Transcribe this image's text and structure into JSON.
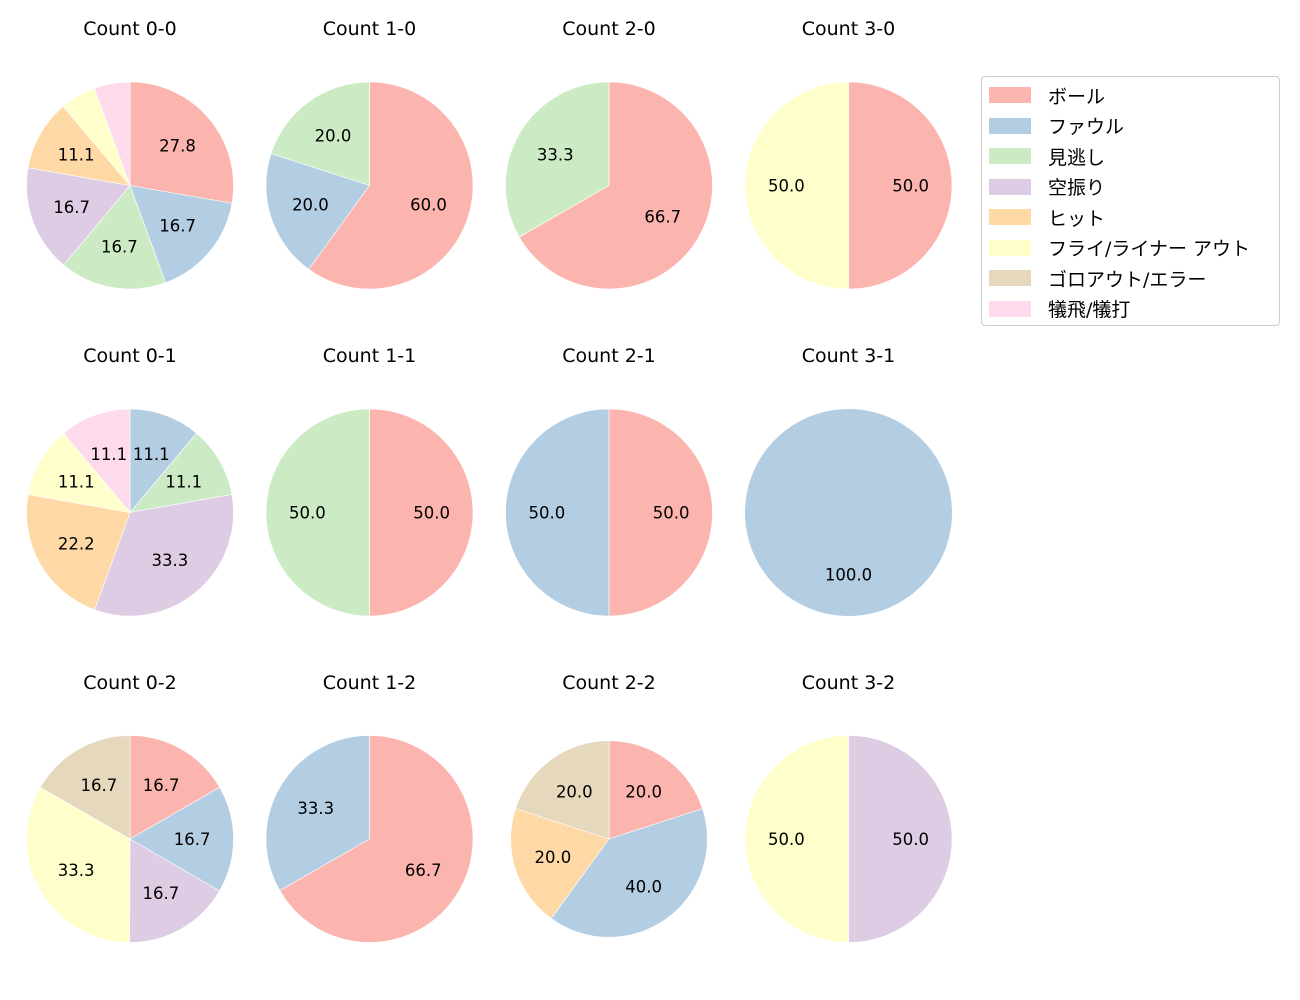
{
  "chart_data": {
    "type": "pie",
    "layout": {
      "rows": 3,
      "cols": 4,
      "start_angle": 90,
      "direction": "clockwise",
      "label_format": "%.1f"
    },
    "legend": {
      "position": "upper right",
      "entries": [
        {
          "label": "ボール",
          "color": "#fbb4ae"
        },
        {
          "label": "ファウル",
          "color": "#b3cde3"
        },
        {
          "label": "見逃し",
          "color": "#ccebc5"
        },
        {
          "label": "空振り",
          "color": "#decbe4"
        },
        {
          "label": "ヒット",
          "color": "#fed9a6"
        },
        {
          "label": "フライ/ライナー アウト",
          "color": "#ffffcc"
        },
        {
          "label": "ゴロアウト/エラー",
          "color": "#e5d8bd"
        },
        {
          "label": "犠飛/犠打",
          "color": "#fddaec"
        }
      ]
    },
    "pies": [
      {
        "title": "Count 0-0",
        "row": 0,
        "col": 0,
        "slices": [
          {
            "category": "ボール",
            "value": 27.8,
            "label": "27.8"
          },
          {
            "category": "ファウル",
            "value": 16.7,
            "label": "16.7"
          },
          {
            "category": "見逃し",
            "value": 16.7,
            "label": "16.7"
          },
          {
            "category": "空振り",
            "value": 16.7,
            "label": "16.7"
          },
          {
            "category": "ヒット",
            "value": 11.1,
            "label": "11.1"
          },
          {
            "category": "フライ/ライナー アウト",
            "value": 5.6,
            "label": ""
          },
          {
            "category": "犠飛/犠打",
            "value": 5.6,
            "label": ""
          }
        ]
      },
      {
        "title": "Count 1-0",
        "row": 0,
        "col": 1,
        "slices": [
          {
            "category": "ボール",
            "value": 60.0,
            "label": "60.0"
          },
          {
            "category": "ファウル",
            "value": 20.0,
            "label": "20.0"
          },
          {
            "category": "見逃し",
            "value": 20.0,
            "label": "20.0"
          }
        ]
      },
      {
        "title": "Count 2-0",
        "row": 0,
        "col": 2,
        "slices": [
          {
            "category": "ボール",
            "value": 66.7,
            "label": "66.7"
          },
          {
            "category": "見逃し",
            "value": 33.3,
            "label": "33.3"
          }
        ]
      },
      {
        "title": "Count 3-0",
        "row": 0,
        "col": 3,
        "slices": [
          {
            "category": "ボール",
            "value": 50.0,
            "label": "50.0"
          },
          {
            "category": "フライ/ライナー アウト",
            "value": 50.0,
            "label": "50.0"
          }
        ]
      },
      {
        "title": "Count 0-1",
        "row": 1,
        "col": 0,
        "slices": [
          {
            "category": "ファウル",
            "value": 11.1,
            "label": "11.1"
          },
          {
            "category": "見逃し",
            "value": 11.1,
            "label": "11.1"
          },
          {
            "category": "空振り",
            "value": 33.3,
            "label": "33.3"
          },
          {
            "category": "ヒット",
            "value": 22.2,
            "label": "22.2"
          },
          {
            "category": "フライ/ライナー アウト",
            "value": 11.1,
            "label": "11.1"
          },
          {
            "category": "犠飛/犠打",
            "value": 11.1,
            "label": "11.1"
          }
        ]
      },
      {
        "title": "Count 1-1",
        "row": 1,
        "col": 1,
        "slices": [
          {
            "category": "ボール",
            "value": 50.0,
            "label": "50.0"
          },
          {
            "category": "見逃し",
            "value": 50.0,
            "label": "50.0"
          }
        ]
      },
      {
        "title": "Count 2-1",
        "row": 1,
        "col": 2,
        "slices": [
          {
            "category": "ボール",
            "value": 50.0,
            "label": "50.0"
          },
          {
            "category": "ファウル",
            "value": 50.0,
            "label": "50.0"
          }
        ]
      },
      {
        "title": "Count 3-1",
        "row": 1,
        "col": 3,
        "slices": [
          {
            "category": "ファウル",
            "value": 100.0,
            "label": "100.0"
          }
        ]
      },
      {
        "title": "Count 0-2",
        "row": 2,
        "col": 0,
        "slices": [
          {
            "category": "ボール",
            "value": 16.7,
            "label": "16.7"
          },
          {
            "category": "ファウル",
            "value": 16.7,
            "label": "16.7"
          },
          {
            "category": "空振り",
            "value": 16.7,
            "label": "16.7"
          },
          {
            "category": "フライ/ライナー アウト",
            "value": 33.3,
            "label": "33.3"
          },
          {
            "category": "ゴロアウト/エラー",
            "value": 16.7,
            "label": "16.7"
          }
        ]
      },
      {
        "title": "Count 1-2",
        "row": 2,
        "col": 1,
        "slices": [
          {
            "category": "ボール",
            "value": 66.7,
            "label": "66.7"
          },
          {
            "category": "ファウル",
            "value": 33.3,
            "label": "33.3"
          }
        ]
      },
      {
        "title": "Count 2-2",
        "row": 2,
        "col": 2,
        "radius_scale": 0.95,
        "slices": [
          {
            "category": "ボール",
            "value": 20.0,
            "label": "20.0"
          },
          {
            "category": "ファウル",
            "value": 40.0,
            "label": "40.0"
          },
          {
            "category": "ヒット",
            "value": 20.0,
            "label": "20.0"
          },
          {
            "category": "ゴロアウト/エラー",
            "value": 20.0,
            "label": "20.0"
          }
        ]
      },
      {
        "title": "Count 3-2",
        "row": 2,
        "col": 3,
        "slices": [
          {
            "category": "空振り",
            "value": 50.0,
            "label": "50.0"
          },
          {
            "category": "フライ/ライナー アウト",
            "value": 50.0,
            "label": "50.0"
          }
        ]
      }
    ]
  }
}
